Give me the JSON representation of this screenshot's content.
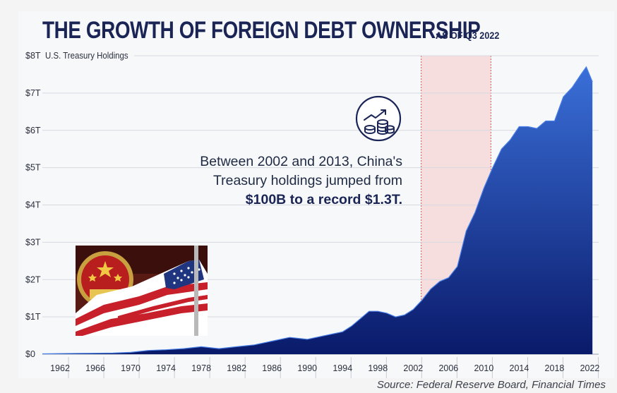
{
  "title": "THE GROWTH OF FOREIGN DEBT OWNERSHIP",
  "subtitle": "AS OF Q3 2022",
  "source": "Source: Federal Reserve Board, Financial Times",
  "callout": {
    "line1": "Between 2002 and 2013, China's",
    "line2": "Treasury holdings jumped from",
    "line3": "$100B to a record $1.3T."
  },
  "colors": {
    "area_top": "#3a6fd8",
    "area_bottom": "#0a1a6a",
    "highlight": "#f6dede",
    "title": "#1a2556",
    "highlight_line": "#e05a5a"
  },
  "icons": [
    "coin-stack-growth-icon",
    "china-us-flag-photo"
  ],
  "chart_data": {
    "type": "area",
    "title": "THE GROWTH OF FOREIGN DEBT OWNERSHIP",
    "ylabel": "U.S. Treasury Holdings",
    "ylim": [
      0,
      8
    ],
    "xlim": [
      1960,
      2023
    ],
    "y_ticks": [
      "$0",
      "$1T",
      "$2T",
      "$3T",
      "$4T",
      "$5T",
      "$6T",
      "$7T",
      "$8T"
    ],
    "x_ticks": [
      "1962",
      "1966",
      "1970",
      "1974",
      "1978",
      "1982",
      "1986",
      "1990",
      "1994",
      "1998",
      "2002",
      "2006",
      "2010",
      "2014",
      "2018",
      "2022"
    ],
    "highlight_range": [
      2002,
      2013
    ],
    "x": [
      1960,
      1964,
      1968,
      1970,
      1972,
      1974,
      1976,
      1978,
      1980,
      1982,
      1984,
      1986,
      1988,
      1990,
      1992,
      1994,
      1995,
      1996,
      1997,
      1998,
      1999,
      2000,
      2001,
      2002,
      2003,
      2004,
      2005,
      2006,
      2007,
      2008,
      2009,
      2010,
      2011,
      2012,
      2013,
      2014,
      2015,
      2016,
      2017,
      2018,
      2019,
      2020,
      2021,
      2021.6,
      2022.3
    ],
    "y": [
      0.01,
      0.02,
      0.03,
      0.05,
      0.1,
      0.12,
      0.15,
      0.2,
      0.15,
      0.2,
      0.25,
      0.35,
      0.45,
      0.4,
      0.5,
      0.6,
      0.75,
      0.95,
      1.15,
      1.15,
      1.1,
      1.0,
      1.05,
      1.2,
      1.45,
      1.75,
      1.95,
      2.05,
      2.35,
      3.3,
      3.8,
      4.45,
      5.0,
      5.5,
      5.75,
      6.1,
      6.1,
      6.05,
      6.25,
      6.25,
      6.9,
      7.15,
      7.5,
      7.7,
      7.3
    ]
  }
}
